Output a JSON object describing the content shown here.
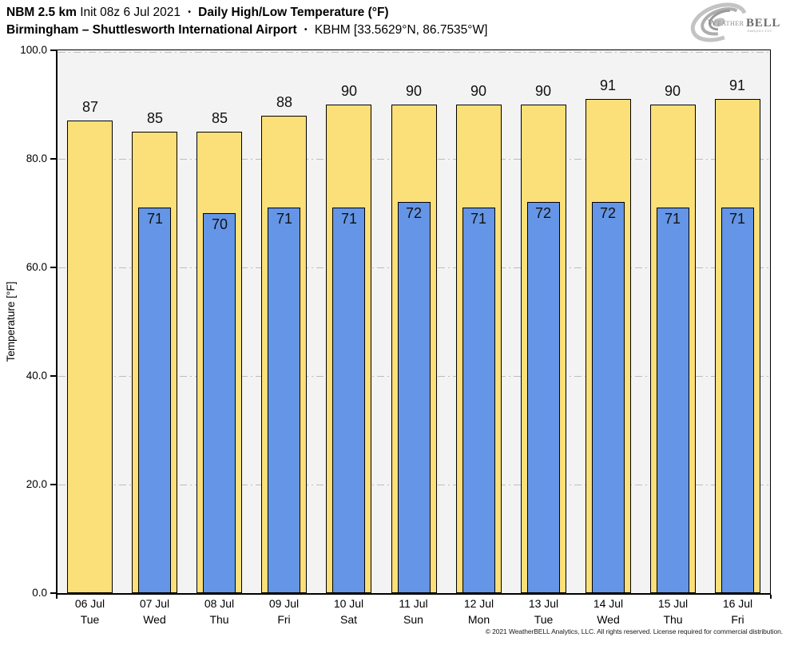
{
  "header": {
    "title": {
      "model": "NBM 2.5 km",
      "init": "Init 08z 6 Jul 2021",
      "sep": "•",
      "product": "Daily High/Low Temperature (°F)"
    },
    "subtitle": {
      "station": "Birmingham – Shuttlesworth International Airport",
      "sep": "•",
      "id": "KBHM [33.5629°N, 86.7535°W]"
    }
  },
  "logo": {
    "weather": "Weather",
    "bell": "BELL",
    "sub": "Analytics LLC"
  },
  "chart_data": {
    "type": "bar",
    "title": "Daily High/Low Temperature (°F)",
    "xlabel": "",
    "ylabel": "Temperature [°F]",
    "ylim": [
      0,
      100
    ],
    "yticks": [
      0,
      20,
      40,
      60,
      80,
      100
    ],
    "ytick_labels": [
      "0.0",
      "20.0",
      "40.0",
      "60.0",
      "80.0",
      "100.0"
    ],
    "grid": "horizontal dash-dot",
    "grid_color": "#BDBDBD",
    "plot_bg": "#F3F3F3",
    "bar_border_color": "#000000",
    "legend": "none",
    "categories": [
      {
        "date": "06 Jul",
        "day": "Tue"
      },
      {
        "date": "07 Jul",
        "day": "Wed"
      },
      {
        "date": "08 Jul",
        "day": "Thu"
      },
      {
        "date": "09 Jul",
        "day": "Fri"
      },
      {
        "date": "10 Jul",
        "day": "Sat"
      },
      {
        "date": "11 Jul",
        "day": "Sun"
      },
      {
        "date": "12 Jul",
        "day": "Mon"
      },
      {
        "date": "13 Jul",
        "day": "Tue"
      },
      {
        "date": "14 Jul",
        "day": "Wed"
      },
      {
        "date": "15 Jul",
        "day": "Thu"
      },
      {
        "date": "16 Jul",
        "day": "Fri"
      }
    ],
    "series": [
      {
        "name": "Daily High",
        "color": "#FBDF78",
        "values": [
          87,
          85,
          85,
          88,
          90,
          90,
          90,
          90,
          91,
          90,
          91
        ]
      },
      {
        "name": "Daily Low",
        "color": "#6495E6",
        "values": [
          null,
          71,
          70,
          71,
          71,
          72,
          71,
          72,
          72,
          71,
          71
        ]
      }
    ]
  },
  "footer": {
    "copyright": "© 2021 WeatherBELL Analytics, LLC. All rights reserved. License required for commercial distribution."
  }
}
